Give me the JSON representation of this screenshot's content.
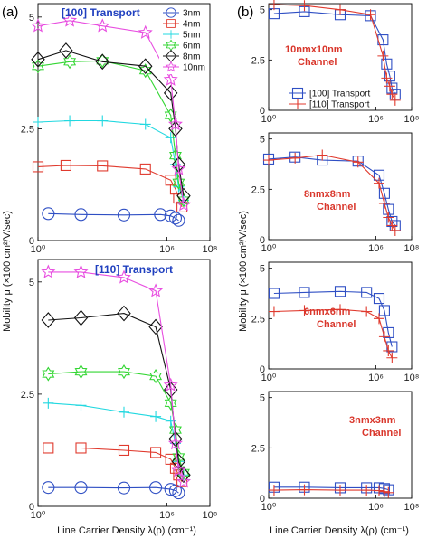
{
  "figure": {
    "panel_a_label": "(a)",
    "panel_b_label": "(b)",
    "ylabel_a": "Mobility μ (×100 cm²/V/sec)",
    "ylabel_b": "Mobility μ (×100 cm²/V/sec)",
    "xlabel_a": "Line Carrier Density λ(ρ) (cm⁻¹)",
    "xlabel_b": "Line Carrier Density λ(ρ) (cm⁻¹)"
  },
  "colors": {
    "3nm": "#2f4fc4",
    "4nm": "#e03a2e",
    "5nm": "#22d8e0",
    "6nm": "#33d633",
    "8nm": "#111111",
    "10nm": "#e84ee0",
    "100_transport": "#2f4fc4",
    "110_transport": "#e03a2e"
  },
  "chart_data": [
    {
      "id": "a_top",
      "type": "line",
      "title": "[100] Transport",
      "xscale": "log",
      "xlim": [
        1,
        100000000
      ],
      "ylim": [
        0,
        5.3
      ],
      "xticks": [
        1,
        1000000,
        100000000
      ],
      "xtick_labels": [
        "10⁰",
        "10⁶",
        "10⁸"
      ],
      "yticks": [
        0,
        2.5,
        5
      ],
      "ytick_labels": [
        "0",
        "2.5",
        "5"
      ],
      "legend": {
        "position": "top-right",
        "entries": [
          "3nm",
          "4nm",
          "5nm",
          "6nm",
          "8nm",
          "10nm"
        ]
      },
      "series": [
        {
          "name": "3nm",
          "marker": "circle",
          "color": "#2f4fc4",
          "x": [
            3,
            100,
            10000,
            500000,
            1500000,
            2500000,
            3500000
          ],
          "y": [
            0.6,
            0.58,
            0.57,
            0.58,
            0.55,
            0.5,
            0.45
          ]
        },
        {
          "name": "4nm",
          "marker": "square",
          "color": "#e03a2e",
          "x": [
            1,
            20,
            1000,
            100000,
            1500000,
            2500000,
            3500000,
            5000000
          ],
          "y": [
            1.65,
            1.68,
            1.67,
            1.6,
            1.35,
            1.15,
            0.95,
            0.75
          ]
        },
        {
          "name": "5nm",
          "marker": "plus",
          "color": "#22d8e0",
          "x": [
            1,
            30,
            1000,
            100000,
            1500000,
            2500000,
            3500000,
            6000000
          ],
          "y": [
            2.65,
            2.68,
            2.68,
            2.6,
            2.3,
            1.7,
            1.2,
            0.9
          ]
        },
        {
          "name": "6nm",
          "marker": "hexstar",
          "color": "#33d633",
          "x": [
            1,
            30,
            1000,
            100000,
            1500000,
            2500000,
            3500000,
            6000000
          ],
          "y": [
            3.9,
            4.0,
            4.02,
            3.8,
            2.8,
            1.9,
            1.3,
            0.9
          ]
        },
        {
          "name": "8nm",
          "marker": "diamond",
          "color": "#111111",
          "x": [
            1,
            20,
            1000,
            100000,
            1500000,
            2500000,
            3500000,
            6000000
          ],
          "y": [
            4.05,
            4.25,
            4.0,
            3.9,
            3.3,
            2.5,
            1.7,
            1.0
          ]
        },
        {
          "name": "10nm",
          "marker": "star",
          "color": "#e84ee0",
          "x": [
            1,
            30,
            1000,
            100000,
            1500000,
            2500000,
            3500000,
            6000000
          ],
          "y": [
            4.8,
            4.92,
            4.8,
            4.65,
            3.6,
            2.6,
            1.6,
            0.8
          ]
        }
      ]
    },
    {
      "id": "a_bottom",
      "type": "line",
      "title": "[110] Transport",
      "xscale": "log",
      "xlim": [
        1,
        100000000
      ],
      "ylim": [
        0,
        5.5
      ],
      "xticks": [
        1,
        1000000,
        100000000
      ],
      "xtick_labels": [
        "10⁰",
        "10⁶",
        "10⁸"
      ],
      "yticks": [
        0,
        2.5,
        5
      ],
      "ytick_labels": [
        "0",
        "2.5",
        "5"
      ],
      "series": [
        {
          "name": "3nm",
          "marker": "circle",
          "color": "#2f4fc4",
          "x": [
            3,
            100,
            10000,
            300000,
            1500000,
            2500000,
            3500000
          ],
          "y": [
            0.42,
            0.42,
            0.41,
            0.42,
            0.38,
            0.35,
            0.3
          ]
        },
        {
          "name": "4nm",
          "marker": "square",
          "color": "#e03a2e",
          "x": [
            3,
            100,
            10000,
            300000,
            1500000,
            2500000,
            3500000,
            5000000
          ],
          "y": [
            1.3,
            1.3,
            1.25,
            1.2,
            1.05,
            0.85,
            0.7,
            0.55
          ]
        },
        {
          "name": "5nm",
          "marker": "plus",
          "color": "#22d8e0",
          "x": [
            3,
            100,
            10000,
            300000,
            1500000,
            2500000,
            3500000,
            6000000
          ],
          "y": [
            2.3,
            2.25,
            2.1,
            2.0,
            1.9,
            1.4,
            1.0,
            0.7
          ]
        },
        {
          "name": "6nm",
          "marker": "hexstar",
          "color": "#33d633",
          "x": [
            3,
            100,
            10000,
            300000,
            1500000,
            2500000,
            3500000,
            6000000
          ],
          "y": [
            2.95,
            3.0,
            3.0,
            2.9,
            2.3,
            1.7,
            1.1,
            0.75
          ]
        },
        {
          "name": "8nm",
          "marker": "diamond",
          "color": "#111111",
          "x": [
            3,
            100,
            10000,
            300000,
            1500000,
            2500000,
            3500000,
            6000000
          ],
          "y": [
            4.15,
            4.2,
            4.3,
            4.0,
            2.6,
            1.5,
            1.0,
            0.7
          ]
        },
        {
          "name": "10nm",
          "marker": "star",
          "color": "#e84ee0",
          "x": [
            3,
            100,
            10000,
            300000,
            1500000,
            2500000,
            3500000,
            6000000
          ],
          "y": [
            5.22,
            5.22,
            5.1,
            4.8,
            2.7,
            1.4,
            0.8,
            0.55
          ]
        }
      ]
    },
    {
      "id": "b_10nm",
      "type": "line",
      "title": "10nmx10nm Channel",
      "xscale": "log",
      "xlim": [
        1,
        100000000
      ],
      "ylim": [
        0,
        5.3
      ],
      "xticks": [
        1,
        1000000,
        100000000
      ],
      "xtick_labels": [
        "10⁰",
        "10⁶",
        "10⁸"
      ],
      "yticks": [
        0,
        2.5,
        5
      ],
      "ytick_labels": [
        "0",
        "2.5",
        "5"
      ],
      "legend": {
        "position": "center-right",
        "entries": [
          "[100] Transport",
          "[110] Transport"
        ]
      },
      "series": [
        {
          "name": "[100] Transport",
          "marker": "square",
          "color": "#2f4fc4",
          "x": [
            2,
            100,
            10000,
            500000,
            2500000,
            4000000,
            6000000,
            8000000,
            12000000
          ],
          "y": [
            4.8,
            4.9,
            4.75,
            4.7,
            3.5,
            2.3,
            1.7,
            1.1,
            0.8
          ]
        },
        {
          "name": "[110] Transport",
          "marker": "plus",
          "color": "#e03a2e",
          "x": [
            2,
            100,
            10000,
            500000,
            2500000,
            4000000,
            6000000,
            8000000,
            12000000
          ],
          "y": [
            5.25,
            5.2,
            5.0,
            4.75,
            2.7,
            1.6,
            1.2,
            0.8,
            0.5
          ]
        }
      ]
    },
    {
      "id": "b_8nm",
      "type": "line",
      "title": "8nmx8nm Channel",
      "xscale": "log",
      "xlim": [
        1,
        100000000
      ],
      "ylim": [
        0,
        5.3
      ],
      "xticks": [
        1,
        1000000,
        100000000
      ],
      "xtick_labels": [
        "10⁰",
        "10⁶",
        "10⁸"
      ],
      "yticks": [
        0,
        2.5,
        5
      ],
      "ytick_labels": [
        "0",
        "2.5",
        "5"
      ],
      "series": [
        {
          "name": "[100] Transport",
          "marker": "square",
          "color": "#2f4fc4",
          "x": [
            1,
            30,
            1000,
            100000,
            1500000,
            3000000,
            5000000,
            8000000,
            12000000
          ],
          "y": [
            4.0,
            4.1,
            3.95,
            3.9,
            3.2,
            2.3,
            1.5,
            0.9,
            0.7
          ]
        },
        {
          "name": "[110] Transport",
          "marker": "plus",
          "color": "#e03a2e",
          "x": [
            1,
            30,
            1000,
            100000,
            1500000,
            3000000,
            5000000,
            8000000,
            12000000
          ],
          "y": [
            3.95,
            4.05,
            4.2,
            3.85,
            2.8,
            1.8,
            1.1,
            0.7,
            0.45
          ]
        }
      ]
    },
    {
      "id": "b_6nm",
      "type": "line",
      "title": "6nmx6nm Channel",
      "xscale": "log",
      "xlim": [
        1,
        100000000
      ],
      "ylim": [
        0,
        5.3
      ],
      "xticks": [
        1,
        1000000,
        100000000
      ],
      "xtick_labels": [
        "10⁰",
        "10⁶",
        "10⁸"
      ],
      "yticks": [
        0,
        2.5,
        5
      ],
      "ytick_labels": [
        "0",
        "2.5",
        "5"
      ],
      "series": [
        {
          "name": "[100] Transport",
          "marker": "square",
          "color": "#2f4fc4",
          "x": [
            2,
            100,
            10000,
            300000,
            1500000,
            3000000,
            5000000,
            8000000
          ],
          "y": [
            3.75,
            3.8,
            3.85,
            3.8,
            3.5,
            2.9,
            1.8,
            1.1
          ]
        },
        {
          "name": "[110] Transport",
          "marker": "plus",
          "color": "#e03a2e",
          "x": [
            2,
            100,
            10000,
            300000,
            1500000,
            3000000,
            5000000,
            8000000
          ],
          "y": [
            2.85,
            2.9,
            2.95,
            2.85,
            2.5,
            1.6,
            0.9,
            0.55
          ]
        }
      ]
    },
    {
      "id": "b_3nm",
      "type": "line",
      "title": "3nmx3nm Channel",
      "xscale": "log",
      "xlim": [
        1,
        100000000
      ],
      "ylim": [
        0,
        5.3
      ],
      "xticks": [
        1,
        1000000,
        100000000
      ],
      "xtick_labels": [
        "10⁰",
        "10⁶",
        "10⁸"
      ],
      "yticks": [
        0,
        2.5,
        5
      ],
      "ytick_labels": [
        "0",
        "2.5",
        "5"
      ],
      "series": [
        {
          "name": "[100] Transport",
          "marker": "square",
          "color": "#2f4fc4",
          "x": [
            2,
            100,
            10000,
            300000,
            1500000,
            3000000,
            5000000
          ],
          "y": [
            0.55,
            0.55,
            0.52,
            0.52,
            0.52,
            0.48,
            0.42
          ]
        },
        {
          "name": "[110] Transport",
          "marker": "plus",
          "color": "#e03a2e",
          "x": [
            2,
            100,
            10000,
            300000,
            1500000,
            3000000,
            5000000
          ],
          "y": [
            0.4,
            0.42,
            0.4,
            0.4,
            0.38,
            0.33,
            0.28
          ]
        }
      ]
    }
  ]
}
